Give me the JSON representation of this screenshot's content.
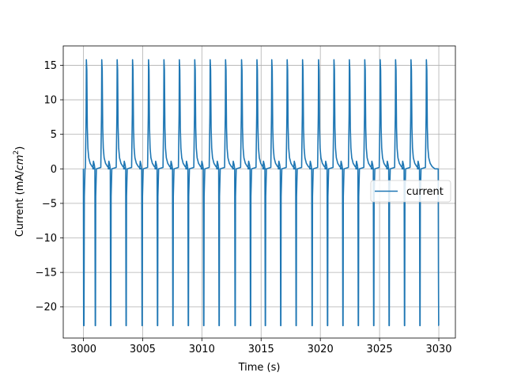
{
  "chart_data": {
    "type": "line",
    "title": "",
    "xlabel": "Time (s)",
    "ylabel_main": "Current (mA/",
    "ylabel_math": "cm",
    "ylabel_exp": "2",
    "ylabel_close": ")",
    "xlim": [
      2998.3,
      3031.4
    ],
    "ylim": [
      -24.5,
      17.8
    ],
    "xticks": [
      3000,
      3005,
      3010,
      3015,
      3020,
      3025,
      3030
    ],
    "xtick_labels": [
      "3000",
      "3005",
      "3010",
      "3015",
      "3020",
      "3025",
      "3030"
    ],
    "yticks": [
      -20,
      -15,
      -10,
      -5,
      0,
      5,
      10,
      15
    ],
    "ytick_labels": [
      "−20",
      "−15",
      "−10",
      "−5",
      "0",
      "5",
      "10",
      "15"
    ],
    "grid": true,
    "legend_position": "center-right",
    "series": [
      {
        "name": "current",
        "color": "#1f77b4",
        "t_start": 3000.0,
        "t_end": 3030.0,
        "spike_times": [
          3000.25,
          3001.55,
          3002.85,
          3004.15,
          3005.5,
          3006.8,
          3008.1,
          3009.4,
          3010.7,
          3012.0,
          3013.35,
          3014.65,
          3015.9,
          3017.2,
          3018.5,
          3019.85,
          3021.15,
          3022.45,
          3023.75,
          3025.05,
          3026.35,
          3027.65,
          3028.95
        ],
        "peak_value": 15.8,
        "trough_value": -22.7,
        "rest_value": 0.0,
        "pre_spike_value": 1.1
      }
    ]
  }
}
